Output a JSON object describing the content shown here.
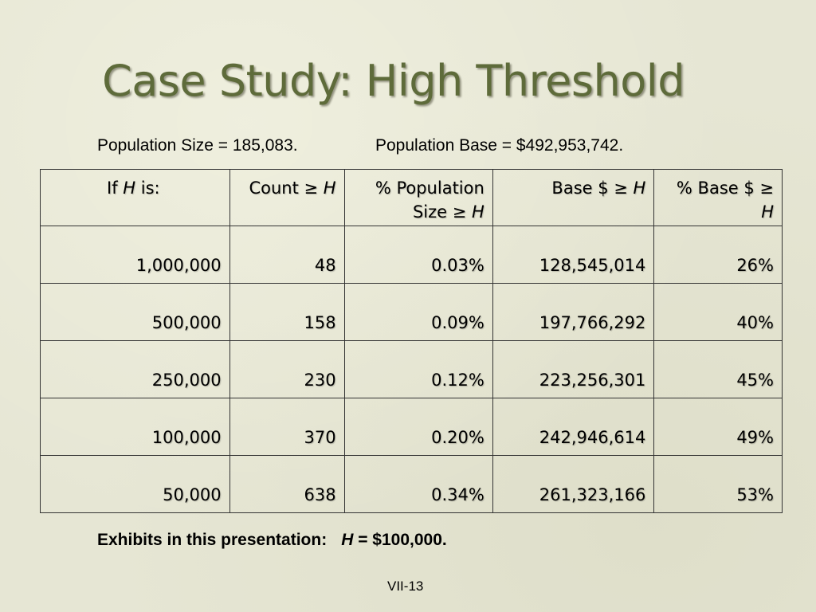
{
  "title": "Case Study: High Threshold",
  "population": {
    "size_text": "Population Size = 185,083.",
    "base_text": "Population Base = $492,953,742."
  },
  "table": {
    "headers": {
      "h_pre": "If ",
      "h_var": "H",
      "h_post": " is:",
      "count_pre": "Count ≥ ",
      "count_var": "H",
      "pct_line1": "% Population",
      "pct_pre": "Size ≥ ",
      "pct_var": "H",
      "base_pre": "Base $ ≥ ",
      "base_var": "H",
      "pb_line1": "% Base $ ≥",
      "pb_var": "H"
    },
    "rows": [
      {
        "h": "1,000,000",
        "count": "48",
        "pct_pop": "0.03%",
        "base": "128,545,014",
        "pct_base": "26%"
      },
      {
        "h": "500,000",
        "count": "158",
        "pct_pop": "0.09%",
        "base": "197,766,292",
        "pct_base": "40%"
      },
      {
        "h": "250,000",
        "count": "230",
        "pct_pop": "0.12%",
        "base": "223,256,301",
        "pct_base": "45%"
      },
      {
        "h": "100,000",
        "count": "370",
        "pct_pop": "0.20%",
        "base": "242,946,614",
        "pct_base": "49%"
      },
      {
        "h": "50,000",
        "count": "638",
        "pct_pop": "0.34%",
        "base": "261,323,166",
        "pct_base": "53%"
      }
    ]
  },
  "exhibits": {
    "label": "Exhibits in this presentation:",
    "var": "H",
    "value": " = $100,000."
  },
  "footer": {
    "page": "VII-13"
  }
}
